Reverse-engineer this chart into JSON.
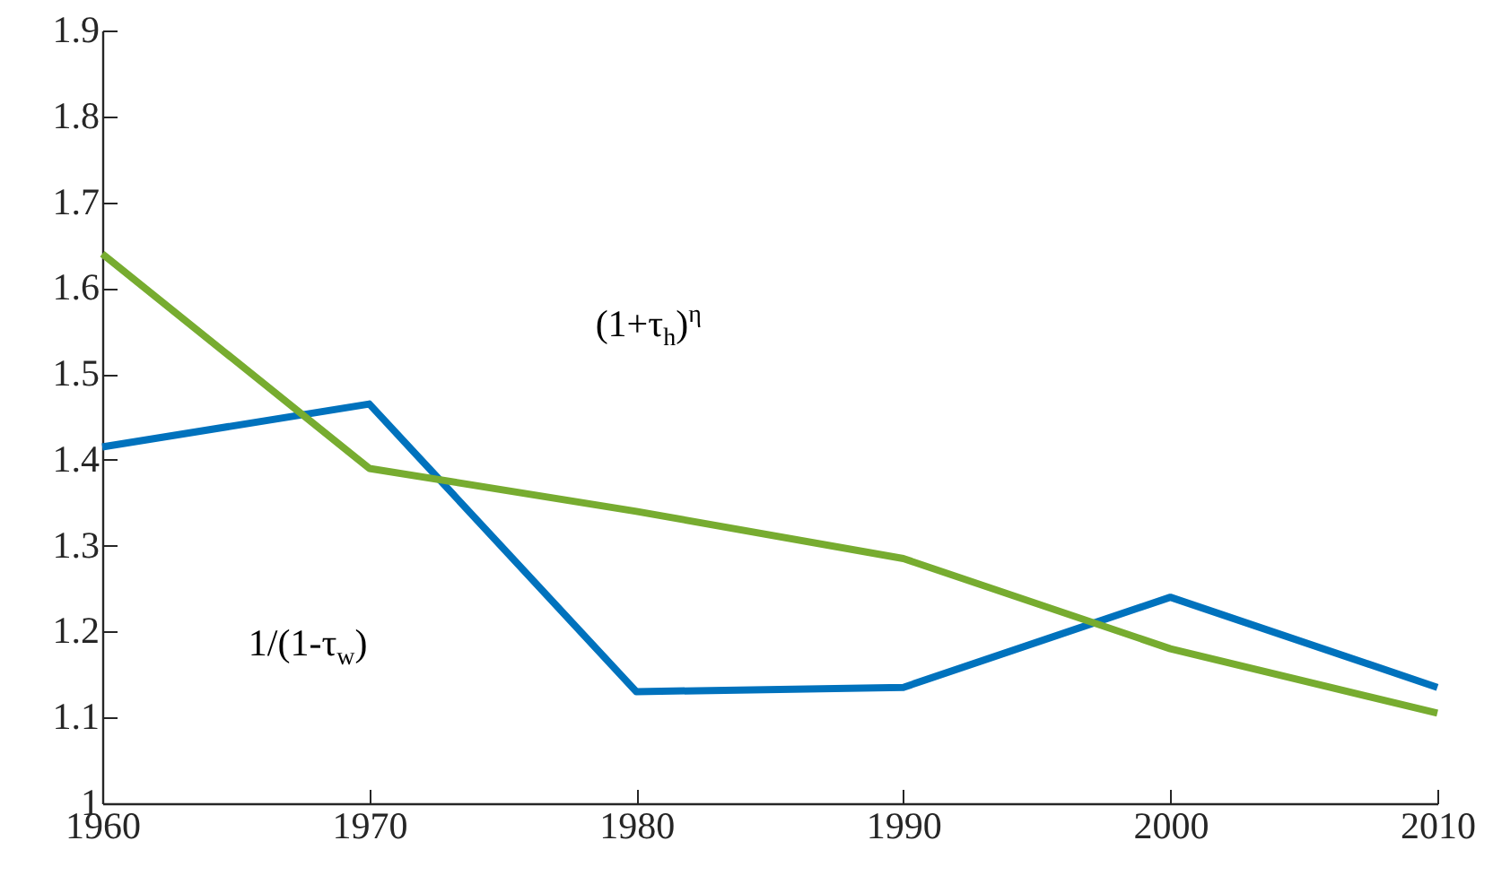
{
  "chart_data": {
    "type": "line",
    "x": [
      1960,
      1970,
      1980,
      1990,
      2000,
      2010
    ],
    "series": [
      {
        "color": "#0072bd",
        "values": [
          1.415,
          1.465,
          1.13,
          1.135,
          1.24,
          1.135
        ]
      },
      {
        "color": "#77ac30",
        "values": [
          1.64,
          1.39,
          1.34,
          1.285,
          1.18,
          1.105
        ]
      }
    ],
    "xlim": [
      1960,
      2010
    ],
    "xticks": [
      1960,
      1970,
      1980,
      1990,
      2000,
      2010
    ],
    "ylim": [
      1,
      1.9
    ],
    "yticks": [
      1,
      1.1,
      1.2,
      1.3,
      1.4,
      1.5,
      1.6,
      1.7,
      1.8,
      1.9
    ],
    "grid": false,
    "marker": "none",
    "line_style": "solid",
    "annotations": [
      "1/(1-τ$_{w}$)",
      "(1+τ$_{h}$)$^{η}$"
    ]
  }
}
